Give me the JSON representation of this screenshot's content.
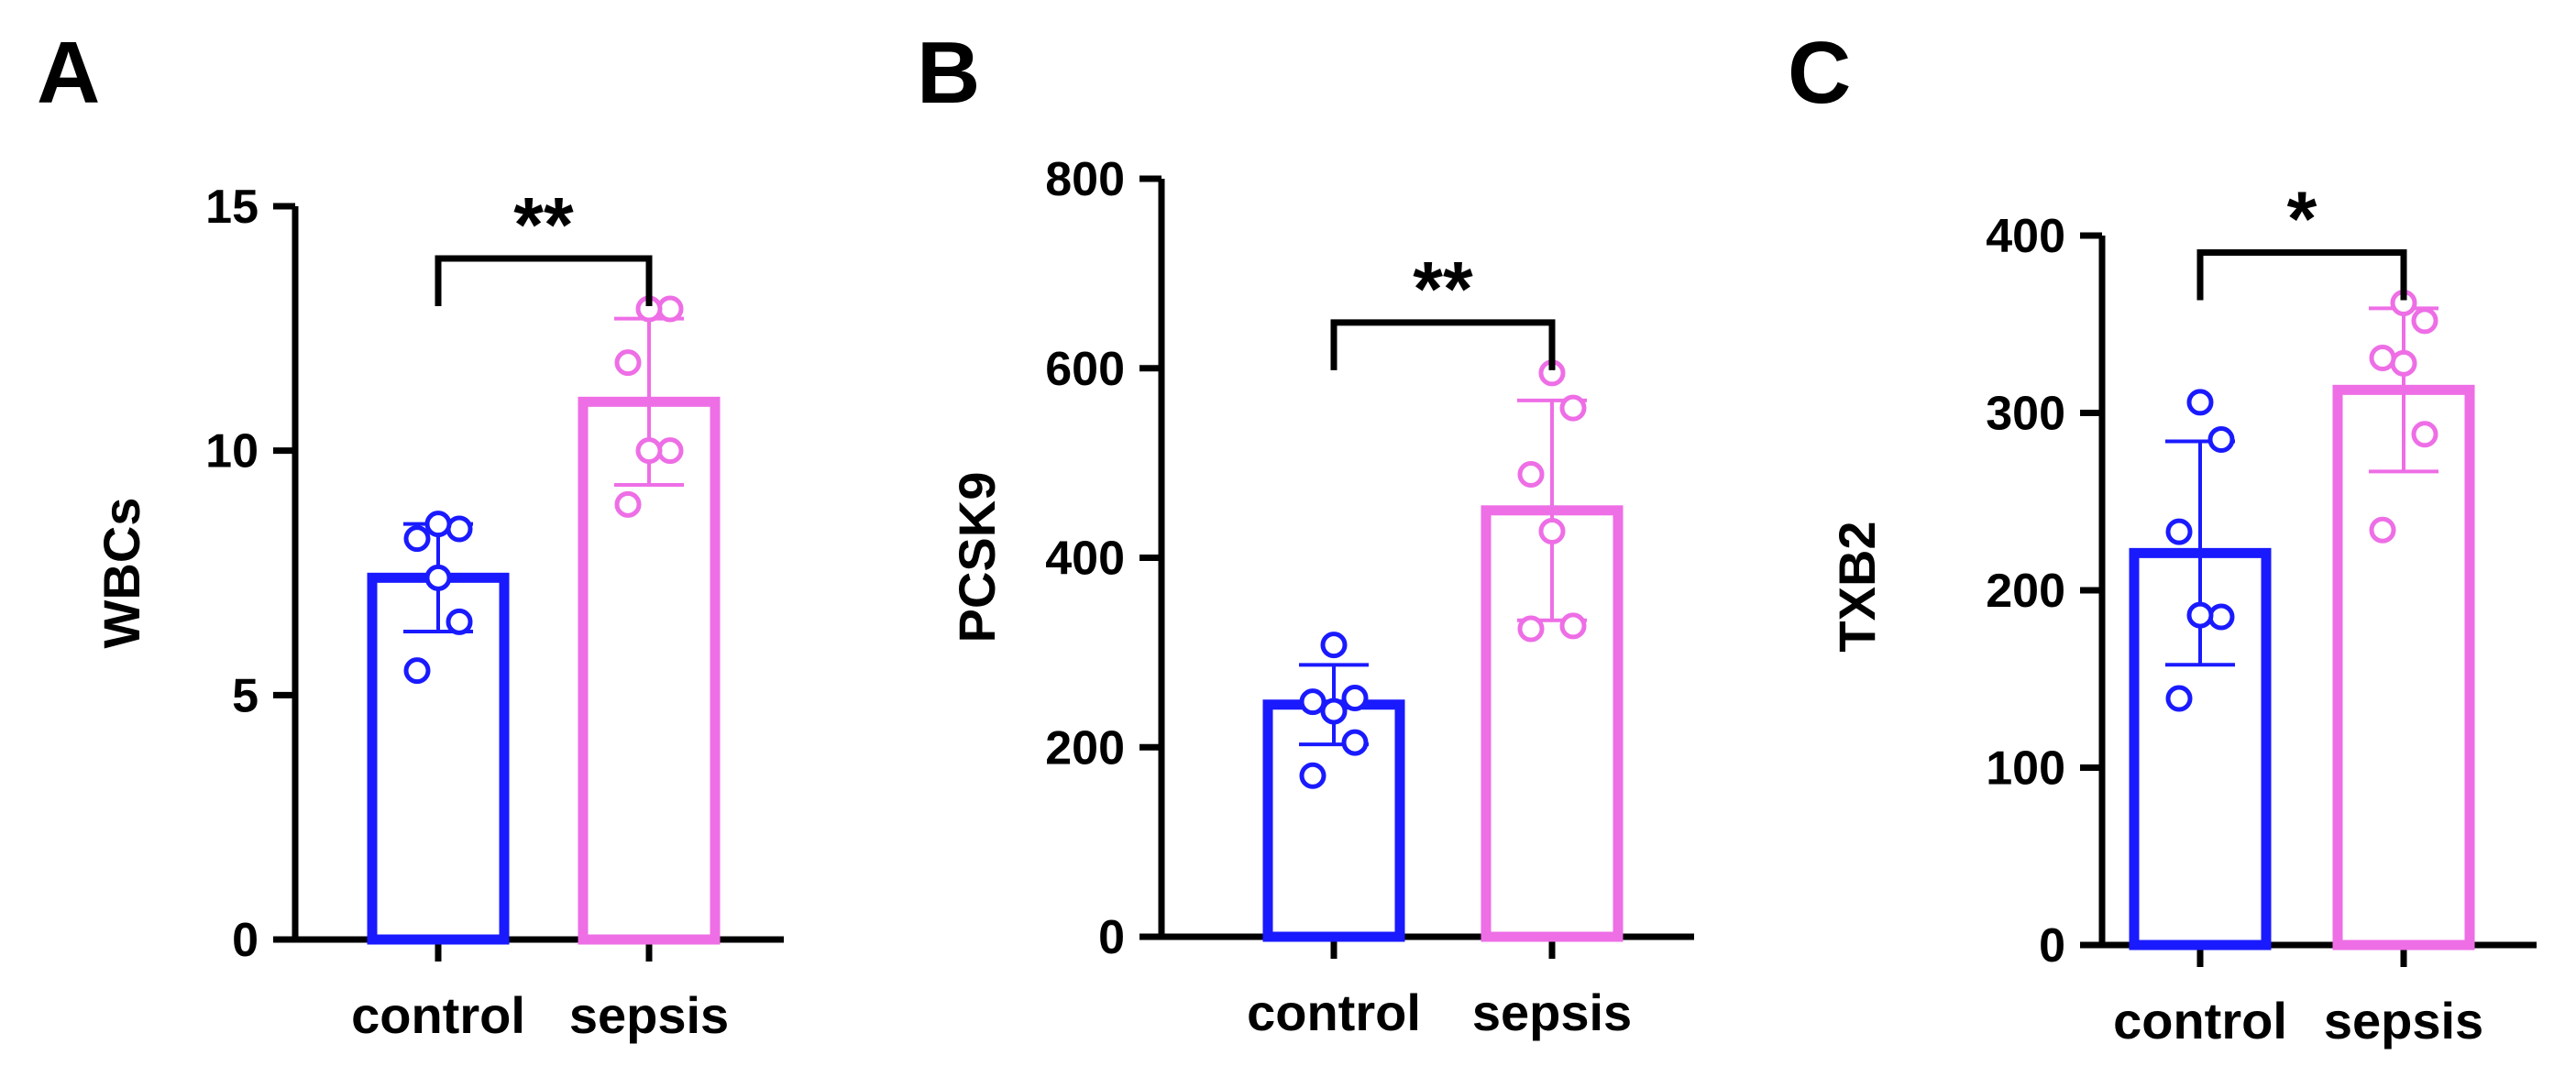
{
  "chart_data": [
    {
      "type": "bar",
      "panel_label": "A",
      "ylabel": "WBCs",
      "categories": [
        "control",
        "sepsis"
      ],
      "ylim": [
        0,
        15
      ],
      "yticks": [
        0,
        5,
        10,
        15
      ],
      "ytick_labels": [
        "0",
        "5",
        "10",
        "15"
      ],
      "series": [
        {
          "values": [
            7.4,
            11.0
          ],
          "sd": [
            1.1,
            1.7
          ],
          "points": [
            [
              5.5,
              6.5,
              7.4,
              8.2,
              8.4,
              8.5
            ],
            [
              8.9,
              10.0,
              10.0,
              11.8,
              12.9,
              12.9
            ]
          ]
        }
      ],
      "significance": "**",
      "colors": [
        "#1a1aff",
        "#ee6ee6"
      ]
    },
    {
      "type": "bar",
      "panel_label": "B",
      "ylabel": "PCSK9",
      "categories": [
        "control",
        "sepsis"
      ],
      "ylim": [
        0,
        800
      ],
      "yticks": [
        0,
        200,
        400,
        600,
        800
      ],
      "ytick_labels": [
        "0",
        "200",
        "400",
        "600",
        "800"
      ],
      "series": [
        {
          "values": [
            245,
            450
          ],
          "sd": [
            42,
            116
          ],
          "points": [
            [
              170,
              205,
              238,
              248,
              252,
              308
            ],
            [
              325,
              328,
              428,
              488,
              558,
              595
            ]
          ]
        }
      ],
      "significance": "**",
      "colors": [
        "#1a1aff",
        "#ee6ee6"
      ]
    },
    {
      "type": "bar",
      "panel_label": "C",
      "ylabel": "TXB2",
      "categories": [
        "control",
        "sepsis"
      ],
      "ylim": [
        0,
        400
      ],
      "yticks": [
        0,
        100,
        200,
        300,
        400
      ],
      "ytick_labels": [
        "0",
        "100",
        "200",
        "300",
        "400"
      ],
      "series": [
        {
          "values": [
            221,
            313
          ],
          "sd": [
            63,
            46
          ],
          "points": [
            [
              139,
              185,
              186,
              233,
              285,
              306
            ],
            [
              234,
              288,
              328,
              331,
              352,
              362
            ]
          ]
        }
      ],
      "significance": "*",
      "colors": [
        "#1a1aff",
        "#ee6ee6"
      ]
    }
  ]
}
